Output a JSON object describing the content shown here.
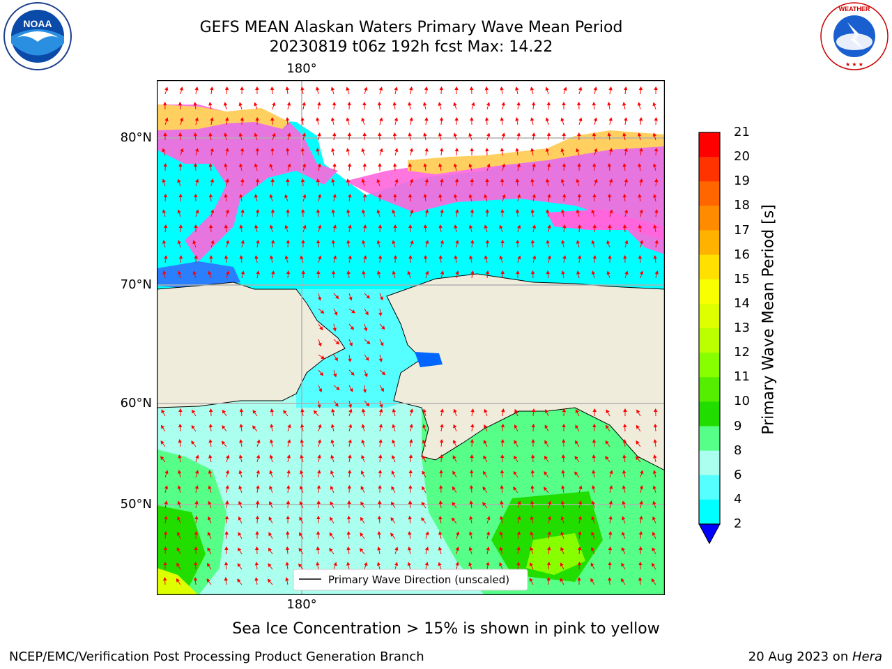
{
  "title": {
    "line1": "GEFS MEAN Alaskan Waters Primary Wave Mean Period",
    "line2": "20230819 t06z 192h fcst   Max: 14.22"
  },
  "logos": {
    "left": {
      "icon": "noaa-logo",
      "text": "NOAA"
    },
    "right": {
      "icon": "nws-logo",
      "text": "NATIONAL WEATHER SERVICE"
    }
  },
  "map": {
    "lat_labels": [
      "80°N",
      "70°N",
      "60°N",
      "50°N"
    ],
    "lon_label_top": "180°",
    "lon_label_bottom": "180°",
    "legend_label": "Primary Wave Direction (unscaled)",
    "land_color": "#efecdc",
    "arrow_color": "#ff0000",
    "grid_color": "#b0b0b0"
  },
  "colorbar": {
    "title": "Primary Wave Mean Period [s]",
    "ticks": [
      "21",
      "20",
      "19",
      "18",
      "17",
      "16",
      "15",
      "14",
      "13",
      "12",
      "11",
      "10",
      "9",
      "8",
      "6",
      "4",
      "2"
    ],
    "colors": [
      "#ff0000",
      "#ff3300",
      "#ff6600",
      "#ff8c00",
      "#ffb300",
      "#ffe000",
      "#f8ff00",
      "#ddff00",
      "#bbff00",
      "#88ff00",
      "#55ee00",
      "#22dd00",
      "#55ff88",
      "#aaffee",
      "#55ffff",
      "#00ffff",
      "#0080ff"
    ],
    "extend_color": "#0000ff"
  },
  "footer": {
    "note": "Sea Ice Concentration > 15% is shown in pink to yellow",
    "credit": "NCEP/EMC/Verification Post Processing Product Generation Branch",
    "date": "20 Aug 2023 on ",
    "machine": "Hera"
  }
}
